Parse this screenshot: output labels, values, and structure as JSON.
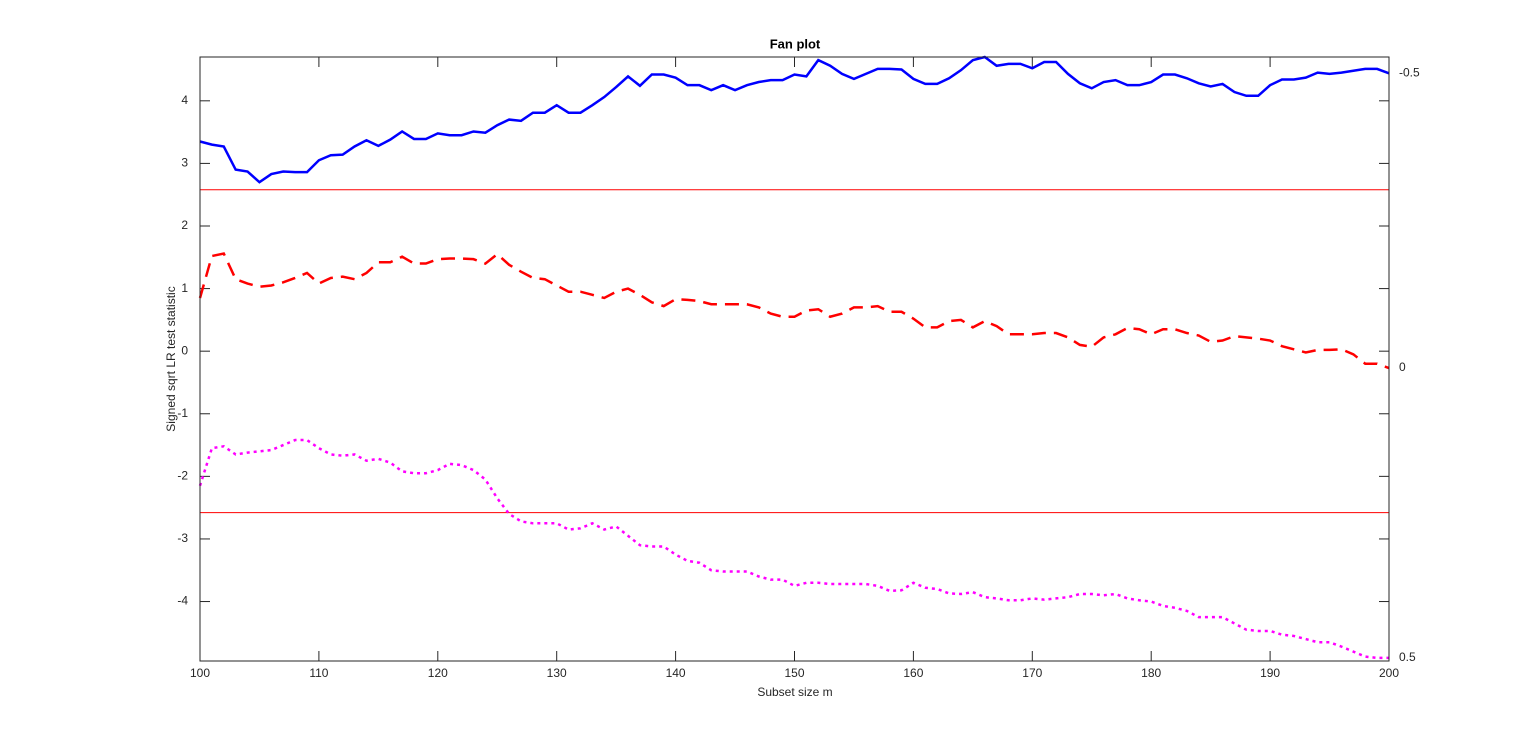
{
  "chart_data": {
    "type": "line",
    "title": "Fan plot",
    "xlabel": "Subset size m",
    "ylabel": "Signed sqrt LR test statistic",
    "x": [
      100,
      101,
      102,
      103,
      104,
      105,
      106,
      107,
      108,
      109,
      110,
      111,
      112,
      113,
      114,
      115,
      116,
      117,
      118,
      119,
      120,
      121,
      122,
      123,
      124,
      125,
      126,
      127,
      128,
      129,
      130,
      131,
      132,
      133,
      134,
      135,
      136,
      137,
      138,
      139,
      140,
      141,
      142,
      143,
      144,
      145,
      146,
      147,
      148,
      149,
      150,
      151,
      152,
      153,
      154,
      155,
      156,
      157,
      158,
      159,
      160,
      161,
      162,
      163,
      164,
      165,
      166,
      167,
      168,
      169,
      170,
      171,
      172,
      173,
      174,
      175,
      176,
      177,
      178,
      179,
      180,
      181,
      182,
      183,
      184,
      185,
      186,
      187,
      188,
      189,
      190,
      191,
      192,
      193,
      194,
      195,
      196,
      197,
      198,
      199,
      200
    ],
    "series": [
      {
        "name": "-0.5",
        "color": "#0000ff",
        "line_style": "solid",
        "values": [
          3.35,
          3.3,
          3.27,
          2.9,
          2.87,
          2.7,
          2.83,
          2.87,
          2.86,
          2.86,
          3.05,
          3.13,
          3.14,
          3.27,
          3.37,
          3.28,
          3.38,
          3.51,
          3.39,
          3.39,
          3.48,
          3.45,
          3.45,
          3.51,
          3.49,
          3.61,
          3.7,
          3.68,
          3.81,
          3.81,
          3.93,
          3.81,
          3.81,
          3.93,
          4.06,
          4.22,
          4.39,
          4.24,
          4.42,
          4.42,
          4.37,
          4.25,
          4.25,
          4.17,
          4.25,
          4.17,
          4.25,
          4.3,
          4.33,
          4.33,
          4.42,
          4.39,
          4.65,
          4.56,
          4.43,
          4.35,
          4.43,
          4.51,
          4.51,
          4.5,
          4.35,
          4.27,
          4.27,
          4.36,
          4.49,
          4.65,
          4.7,
          4.56,
          4.59,
          4.59,
          4.52,
          4.62,
          4.62,
          4.43,
          4.28,
          4.2,
          4.3,
          4.33,
          4.25,
          4.25,
          4.3,
          4.42,
          4.42,
          4.36,
          4.28,
          4.23,
          4.27,
          4.14,
          4.08,
          4.08,
          4.25,
          4.34,
          4.34,
          4.37,
          4.45,
          4.43,
          4.45,
          4.48,
          4.51,
          4.51,
          4.44
        ]
      },
      {
        "name": "0",
        "color": "#ff0000",
        "line_style": "dashed",
        "values": [
          0.85,
          1.52,
          1.56,
          1.15,
          1.08,
          1.03,
          1.05,
          1.1,
          1.17,
          1.25,
          1.08,
          1.17,
          1.19,
          1.15,
          1.25,
          1.42,
          1.42,
          1.51,
          1.4,
          1.4,
          1.47,
          1.48,
          1.48,
          1.47,
          1.4,
          1.55,
          1.38,
          1.27,
          1.17,
          1.15,
          1.05,
          0.95,
          0.95,
          0.9,
          0.85,
          0.95,
          1.0,
          0.9,
          0.78,
          0.72,
          0.83,
          0.82,
          0.8,
          0.75,
          0.75,
          0.75,
          0.75,
          0.7,
          0.6,
          0.55,
          0.55,
          0.65,
          0.67,
          0.55,
          0.6,
          0.7,
          0.7,
          0.72,
          0.63,
          0.63,
          0.52,
          0.38,
          0.38,
          0.48,
          0.5,
          0.38,
          0.48,
          0.4,
          0.27,
          0.27,
          0.27,
          0.29,
          0.29,
          0.22,
          0.1,
          0.07,
          0.22,
          0.27,
          0.37,
          0.35,
          0.27,
          0.35,
          0.35,
          0.29,
          0.25,
          0.15,
          0.17,
          0.24,
          0.22,
          0.2,
          0.17,
          0.08,
          0.03,
          -0.02,
          0.02,
          0.02,
          0.03,
          -0.05,
          -0.2,
          -0.2,
          -0.27
        ]
      },
      {
        "name": "0.5",
        "color": "#ff00ff",
        "line_style": "dotted",
        "values": [
          -2.15,
          -1.55,
          -1.52,
          -1.65,
          -1.62,
          -1.6,
          -1.58,
          -1.5,
          -1.42,
          -1.42,
          -1.55,
          -1.65,
          -1.67,
          -1.65,
          -1.75,
          -1.72,
          -1.78,
          -1.92,
          -1.95,
          -1.95,
          -1.9,
          -1.8,
          -1.82,
          -1.9,
          -2.05,
          -2.35,
          -2.6,
          -2.72,
          -2.75,
          -2.75,
          -2.75,
          -2.85,
          -2.83,
          -2.75,
          -2.85,
          -2.8,
          -2.95,
          -3.1,
          -3.12,
          -3.12,
          -3.25,
          -3.35,
          -3.38,
          -3.5,
          -3.52,
          -3.52,
          -3.52,
          -3.6,
          -3.65,
          -3.65,
          -3.75,
          -3.7,
          -3.7,
          -3.72,
          -3.72,
          -3.72,
          -3.72,
          -3.75,
          -3.83,
          -3.82,
          -3.7,
          -3.78,
          -3.8,
          -3.87,
          -3.88,
          -3.85,
          -3.93,
          -3.95,
          -3.98,
          -3.98,
          -3.95,
          -3.97,
          -3.95,
          -3.93,
          -3.88,
          -3.88,
          -3.9,
          -3.88,
          -3.95,
          -3.98,
          -4.0,
          -4.07,
          -4.1,
          -4.15,
          -4.25,
          -4.25,
          -4.25,
          -4.35,
          -4.45,
          -4.47,
          -4.47,
          -4.53,
          -4.55,
          -4.6,
          -4.65,
          -4.65,
          -4.72,
          -4.8,
          -4.88,
          -4.9,
          -4.9
        ]
      }
    ],
    "hlines": [
      2.58,
      -2.58
    ],
    "hline_color": "#ff0000",
    "xlim": [
      100,
      200
    ],
    "ylim": [
      -4.95,
      4.7
    ],
    "xticks": [
      100,
      110,
      120,
      130,
      140,
      150,
      160,
      170,
      180,
      190,
      200
    ],
    "yticks": [
      -4,
      -3,
      -2,
      -1,
      0,
      1,
      2,
      3,
      4
    ]
  }
}
